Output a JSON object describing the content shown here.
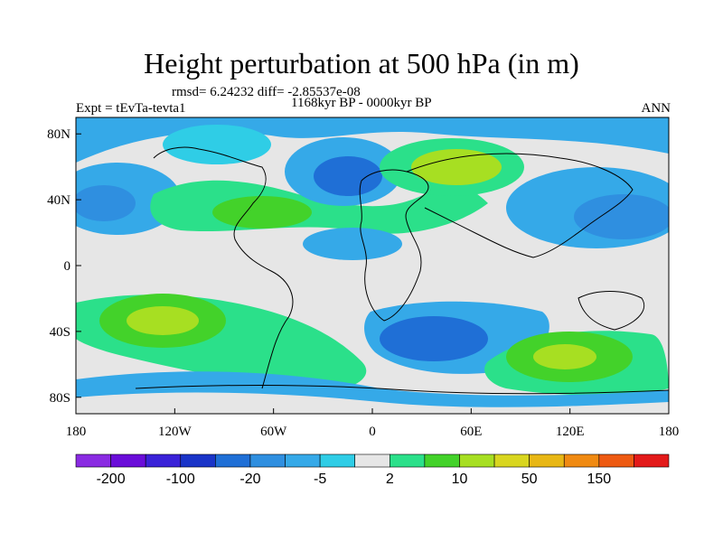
{
  "title": "Height perturbation at 500 hPa (in m)",
  "stats_line": "rmsd= 6.24232 diff= -2.85537e-08",
  "period_line": "1168kyr BP - 0000kyr BP",
  "expt_line": "Expt = tEvTa-tevta1",
  "season_label": "ANN",
  "x_ticks": [
    "180",
    "120W",
    "60W",
    "0",
    "60E",
    "120E",
    "180"
  ],
  "y_ticks": [
    "80N",
    "40N",
    "0",
    "40S",
    "80S"
  ],
  "colorbar": {
    "colors": [
      "#8a2be2",
      "#6a0dd9",
      "#3a22d8",
      "#1a34c8",
      "#1f6fd6",
      "#2f8fe0",
      "#35a9e8",
      "#2fcde6",
      "#e6e6e6",
      "#2be08a",
      "#43d22a",
      "#a7df22",
      "#d9d61f",
      "#e8b715",
      "#f08a12",
      "#ee5a12",
      "#e31a1a"
    ],
    "labels": [
      "-200",
      "-100",
      "-20",
      "-5",
      "2",
      "10",
      "50",
      "150"
    ]
  }
}
